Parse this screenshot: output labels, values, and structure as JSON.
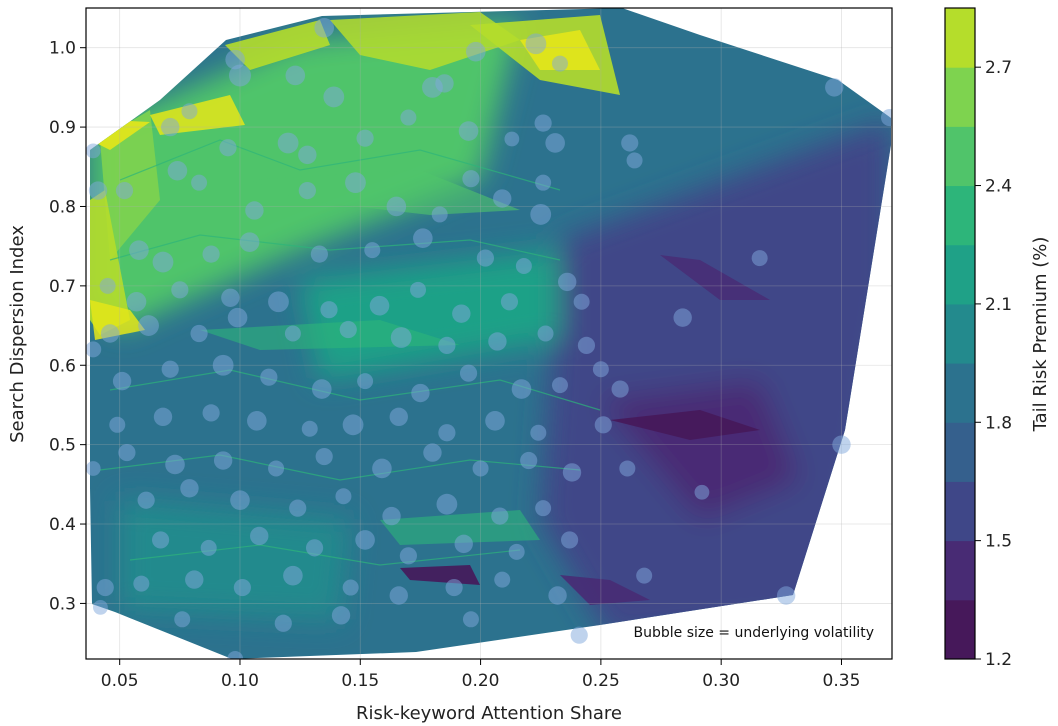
{
  "chart_data": {
    "type": "scatter",
    "subtype": "filled-contour-with-bubbles",
    "title": "",
    "xlabel": "Risk-keyword Attention Share",
    "ylabel": "Search Dispersion Index",
    "xlim": [
      0.036,
      0.371
    ],
    "ylim": [
      0.23,
      1.05
    ],
    "x_ticks": [
      "0.05",
      "0.10",
      "0.15",
      "0.20",
      "0.25",
      "0.30",
      "0.35"
    ],
    "y_ticks": [
      "0.3",
      "0.4",
      "0.5",
      "0.6",
      "0.7",
      "0.8",
      "0.9",
      "1.0"
    ],
    "grid": true,
    "annotation": "Bubble size = underlying volatility",
    "colorbar": {
      "label": "Tail Risk Premium (%)",
      "range": [
        1.2,
        2.85
      ],
      "ticks": [
        "1.2",
        "1.5",
        "1.8",
        "2.1",
        "2.4",
        "2.7"
      ],
      "levels": [
        1.2,
        1.35,
        1.5,
        1.65,
        1.8,
        1.95,
        2.1,
        2.25,
        2.4,
        2.55,
        2.7,
        2.85
      ],
      "colors": [
        "#46185a",
        "#482b74",
        "#3f4788",
        "#35608d",
        "#2c728e",
        "#238a8d",
        "#1fa187",
        "#2db57a",
        "#50c46a",
        "#7ed34f",
        "#b5dd2b",
        "#e4e619"
      ]
    },
    "series": [
      {
        "type": "scatter",
        "marker_color": "#7fa8dc",
        "points": [
          [
            0.039,
            0.87,
            0.4
          ],
          [
            0.041,
            0.82,
            0.7
          ],
          [
            0.039,
            0.62,
            0.5
          ],
          [
            0.039,
            0.47,
            0.4
          ],
          [
            0.044,
            0.32,
            0.6
          ],
          [
            0.042,
            0.295,
            0.4
          ],
          [
            0.098,
            0.985,
            0.8
          ],
          [
            0.135,
            1.025,
            0.8
          ],
          [
            0.1,
            0.965,
            1.0
          ],
          [
            0.123,
            0.965,
            0.8
          ],
          [
            0.198,
            0.995,
            0.8
          ],
          [
            0.223,
            1.005,
            0.9
          ],
          [
            0.233,
            0.98,
            0.5
          ],
          [
            0.18,
            0.95,
            0.9
          ],
          [
            0.185,
            0.955,
            0.7
          ],
          [
            0.347,
            0.95,
            0.7
          ],
          [
            0.37,
            0.912,
            0.6
          ],
          [
            0.35,
            0.5,
            0.7
          ],
          [
            0.327,
            0.31,
            0.7
          ],
          [
            0.241,
            0.26,
            0.6
          ],
          [
            0.098,
            0.23,
            0.5
          ],
          [
            0.071,
            0.9,
            0.7
          ],
          [
            0.079,
            0.92,
            0.5
          ],
          [
            0.095,
            0.874,
            0.6
          ],
          [
            0.12,
            0.88,
            0.9
          ],
          [
            0.128,
            0.865,
            0.7
          ],
          [
            0.139,
            0.938,
            0.9
          ],
          [
            0.152,
            0.886,
            0.6
          ],
          [
            0.17,
            0.912,
            0.5
          ],
          [
            0.195,
            0.895,
            0.8
          ],
          [
            0.213,
            0.885,
            0.4
          ],
          [
            0.226,
            0.905,
            0.6
          ],
          [
            0.231,
            0.88,
            0.8
          ],
          [
            0.262,
            0.88,
            0.6
          ],
          [
            0.264,
            0.858,
            0.5
          ],
          [
            0.052,
            0.82,
            0.6
          ],
          [
            0.074,
            0.845,
            0.8
          ],
          [
            0.083,
            0.83,
            0.5
          ],
          [
            0.106,
            0.795,
            0.7
          ],
          [
            0.128,
            0.82,
            0.6
          ],
          [
            0.148,
            0.83,
            0.9
          ],
          [
            0.165,
            0.8,
            0.8
          ],
          [
            0.183,
            0.79,
            0.5
          ],
          [
            0.196,
            0.835,
            0.6
          ],
          [
            0.209,
            0.81,
            0.7
          ],
          [
            0.225,
            0.79,
            0.9
          ],
          [
            0.226,
            0.83,
            0.5
          ],
          [
            0.058,
            0.745,
            0.8
          ],
          [
            0.068,
            0.73,
            0.9
          ],
          [
            0.088,
            0.74,
            0.6
          ],
          [
            0.104,
            0.755,
            0.8
          ],
          [
            0.133,
            0.74,
            0.6
          ],
          [
            0.155,
            0.745,
            0.5
          ],
          [
            0.176,
            0.76,
            0.8
          ],
          [
            0.202,
            0.735,
            0.6
          ],
          [
            0.218,
            0.725,
            0.5
          ],
          [
            0.045,
            0.7,
            0.5
          ],
          [
            0.057,
            0.68,
            0.8
          ],
          [
            0.075,
            0.695,
            0.6
          ],
          [
            0.096,
            0.685,
            0.7
          ],
          [
            0.116,
            0.68,
            0.9
          ],
          [
            0.137,
            0.67,
            0.6
          ],
          [
            0.158,
            0.675,
            0.8
          ],
          [
            0.174,
            0.695,
            0.5
          ],
          [
            0.192,
            0.665,
            0.7
          ],
          [
            0.212,
            0.68,
            0.6
          ],
          [
            0.236,
            0.705,
            0.7
          ],
          [
            0.242,
            0.68,
            0.5
          ],
          [
            0.046,
            0.64,
            0.7
          ],
          [
            0.062,
            0.65,
            0.9
          ],
          [
            0.083,
            0.64,
            0.6
          ],
          [
            0.099,
            0.66,
            0.8
          ],
          [
            0.122,
            0.64,
            0.5
          ],
          [
            0.145,
            0.645,
            0.6
          ],
          [
            0.167,
            0.635,
            0.9
          ],
          [
            0.186,
            0.625,
            0.6
          ],
          [
            0.207,
            0.63,
            0.7
          ],
          [
            0.227,
            0.64,
            0.5
          ],
          [
            0.244,
            0.625,
            0.6
          ],
          [
            0.284,
            0.66,
            0.7
          ],
          [
            0.316,
            0.735,
            0.5
          ],
          [
            0.051,
            0.58,
            0.7
          ],
          [
            0.071,
            0.595,
            0.6
          ],
          [
            0.093,
            0.6,
            0.9
          ],
          [
            0.112,
            0.585,
            0.6
          ],
          [
            0.134,
            0.57,
            0.8
          ],
          [
            0.152,
            0.58,
            0.5
          ],
          [
            0.175,
            0.565,
            0.7
          ],
          [
            0.195,
            0.59,
            0.6
          ],
          [
            0.217,
            0.57,
            0.8
          ],
          [
            0.233,
            0.575,
            0.5
          ],
          [
            0.25,
            0.595,
            0.5
          ],
          [
            0.258,
            0.57,
            0.6
          ],
          [
            0.049,
            0.525,
            0.5
          ],
          [
            0.068,
            0.535,
            0.7
          ],
          [
            0.088,
            0.54,
            0.6
          ],
          [
            0.107,
            0.53,
            0.8
          ],
          [
            0.129,
            0.52,
            0.5
          ],
          [
            0.147,
            0.525,
            0.9
          ],
          [
            0.166,
            0.535,
            0.7
          ],
          [
            0.186,
            0.515,
            0.6
          ],
          [
            0.206,
            0.53,
            0.8
          ],
          [
            0.224,
            0.515,
            0.5
          ],
          [
            0.251,
            0.525,
            0.6
          ],
          [
            0.053,
            0.49,
            0.6
          ],
          [
            0.073,
            0.475,
            0.8
          ],
          [
            0.093,
            0.48,
            0.7
          ],
          [
            0.115,
            0.47,
            0.5
          ],
          [
            0.135,
            0.485,
            0.6
          ],
          [
            0.159,
            0.47,
            0.8
          ],
          [
            0.18,
            0.49,
            0.7
          ],
          [
            0.2,
            0.47,
            0.5
          ],
          [
            0.22,
            0.48,
            0.6
          ],
          [
            0.238,
            0.465,
            0.7
          ],
          [
            0.261,
            0.47,
            0.5
          ],
          [
            0.292,
            0.44,
            0.4
          ],
          [
            0.061,
            0.43,
            0.6
          ],
          [
            0.079,
            0.445,
            0.7
          ],
          [
            0.1,
            0.43,
            0.8
          ],
          [
            0.124,
            0.42,
            0.6
          ],
          [
            0.143,
            0.435,
            0.5
          ],
          [
            0.163,
            0.41,
            0.7
          ],
          [
            0.186,
            0.425,
            0.9
          ],
          [
            0.208,
            0.41,
            0.6
          ],
          [
            0.226,
            0.42,
            0.5
          ],
          [
            0.067,
            0.38,
            0.6
          ],
          [
            0.087,
            0.37,
            0.5
          ],
          [
            0.108,
            0.385,
            0.7
          ],
          [
            0.131,
            0.37,
            0.6
          ],
          [
            0.152,
            0.38,
            0.8
          ],
          [
            0.17,
            0.36,
            0.6
          ],
          [
            0.193,
            0.375,
            0.7
          ],
          [
            0.215,
            0.365,
            0.5
          ],
          [
            0.237,
            0.38,
            0.6
          ],
          [
            0.059,
            0.325,
            0.5
          ],
          [
            0.081,
            0.33,
            0.7
          ],
          [
            0.101,
            0.32,
            0.6
          ],
          [
            0.122,
            0.335,
            0.8
          ],
          [
            0.146,
            0.32,
            0.5
          ],
          [
            0.166,
            0.31,
            0.7
          ],
          [
            0.189,
            0.32,
            0.6
          ],
          [
            0.209,
            0.33,
            0.5
          ],
          [
            0.232,
            0.31,
            0.7
          ],
          [
            0.268,
            0.335,
            0.5
          ],
          [
            0.076,
            0.28,
            0.5
          ],
          [
            0.118,
            0.275,
            0.6
          ],
          [
            0.142,
            0.285,
            0.7
          ],
          [
            0.196,
            0.28,
            0.5
          ]
        ]
      }
    ]
  }
}
